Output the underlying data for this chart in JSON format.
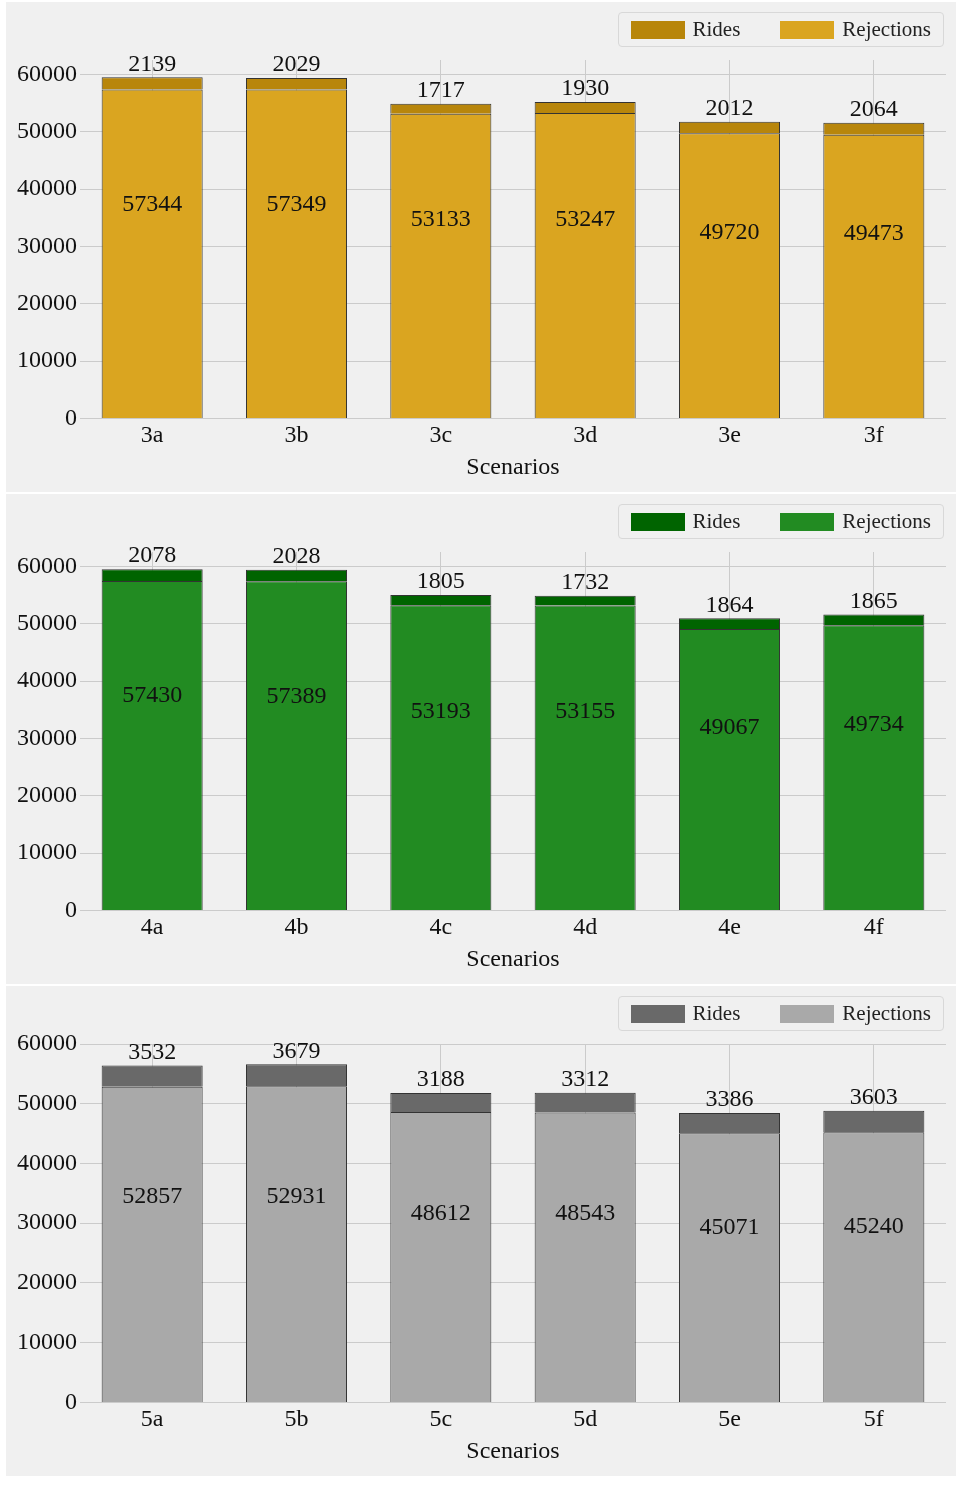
{
  "chart_data": [
    {
      "type": "bar",
      "stacked": true,
      "categories": [
        "3a",
        "3b",
        "3c",
        "3d",
        "3e",
        "3f"
      ],
      "xlabel": "Scenarios",
      "ylim": [
        0,
        62500
      ],
      "yticks": [
        0,
        10000,
        20000,
        30000,
        40000,
        50000,
        60000
      ],
      "grid": true,
      "legend": "top right",
      "data_labels": true,
      "series": [
        {
          "name": "Rejections",
          "color": "#daa520",
          "values": [
            57344,
            57349,
            53133,
            53247,
            49720,
            49473
          ]
        },
        {
          "name": "Rides",
          "color": "#b8860b",
          "values": [
            2139,
            2029,
            1717,
            1930,
            2012,
            2064
          ]
        }
      ]
    },
    {
      "type": "bar",
      "stacked": true,
      "categories": [
        "4a",
        "4b",
        "4c",
        "4d",
        "4e",
        "4f"
      ],
      "xlabel": "Scenarios",
      "ylim": [
        0,
        62500
      ],
      "yticks": [
        0,
        10000,
        20000,
        30000,
        40000,
        50000,
        60000
      ],
      "grid": true,
      "legend": "top right",
      "data_labels": true,
      "series": [
        {
          "name": "Rejections",
          "color": "#228b22",
          "values": [
            57430,
            57389,
            53193,
            53155,
            49067,
            49734
          ]
        },
        {
          "name": "Rides",
          "color": "#006400",
          "values": [
            2078,
            2028,
            1805,
            1732,
            1864,
            1865
          ]
        }
      ]
    },
    {
      "type": "bar",
      "stacked": true,
      "categories": [
        "5a",
        "5b",
        "5c",
        "5d",
        "5e",
        "5f"
      ],
      "xlabel": "Scenarios",
      "ylim": [
        0,
        60000
      ],
      "yticks": [
        0,
        10000,
        20000,
        30000,
        40000,
        50000,
        60000
      ],
      "grid": true,
      "legend": "top right",
      "data_labels": true,
      "series": [
        {
          "name": "Rejections",
          "color": "#a9a9a9",
          "values": [
            52857,
            52931,
            48612,
            48543,
            45071,
            45240
          ]
        },
        {
          "name": "Rides",
          "color": "#696969",
          "values": [
            3532,
            3679,
            3188,
            3312,
            3386,
            3603
          ]
        }
      ]
    }
  ]
}
